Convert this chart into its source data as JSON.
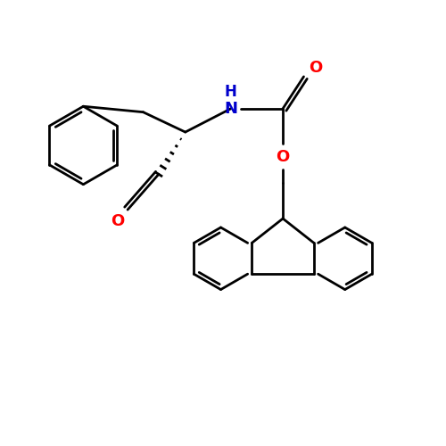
{
  "background_color": "#ffffff",
  "bond_color": "#000000",
  "N_color": "#0000cc",
  "O_color": "#ff0000",
  "lw": 2.0,
  "figsize": [
    5.0,
    5.0
  ],
  "dpi": 100,
  "xlim": [
    0,
    10
  ],
  "ylim": [
    0,
    10
  ]
}
